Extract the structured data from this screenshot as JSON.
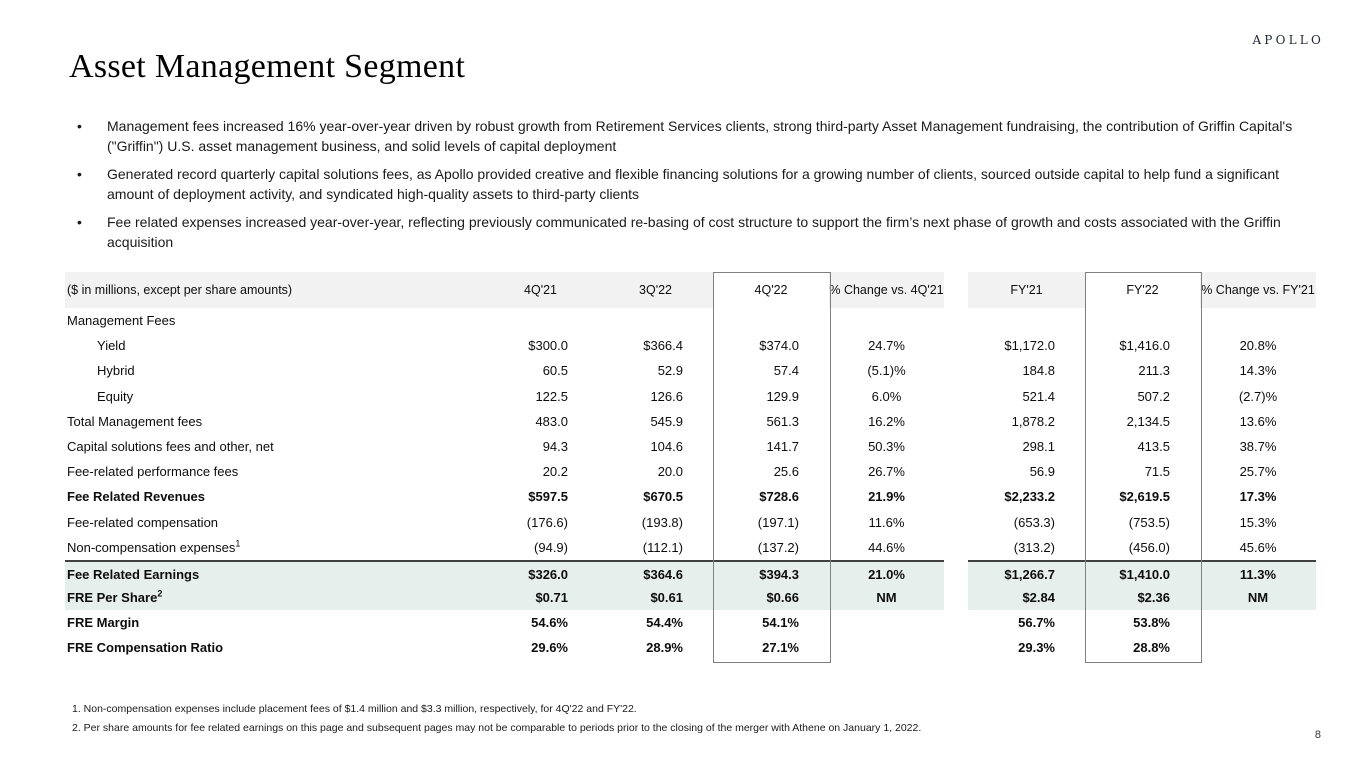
{
  "slide": {
    "logo": "APOLLO",
    "title": "Asset Management Segment",
    "page_number": "8"
  },
  "colors": {
    "highlight_row": "#e6efeb",
    "header_bar": "#f2f2f3",
    "column_outline": "#7f7f7f"
  },
  "bullets": [
    "Management fees increased 16% year-over-year driven by robust growth from Retirement Services clients, strong third-party Asset Management fundraising, the contribution of Griffin Capital's (\"Griffin\") U.S. asset management business, and solid levels of capital deployment",
    "Generated record quarterly capital solutions fees, as Apollo provided creative and flexible financing solutions for a growing number of clients, sourced outside capital to help fund a significant amount of deployment activity, and syndicated high-quality assets to third-party clients",
    "Fee related expenses increased year-over-year, reflecting previously communicated re-basing of cost structure to support the firm’s next phase of growth and costs associated with the Griffin acquisition"
  ],
  "table": {
    "units_label": "($ in millions, except per share amounts)",
    "columns": [
      "4Q'21",
      "3Q'22",
      "4Q'22",
      "% Change vs. 4Q'21",
      "FY'21",
      "FY'22",
      "% Change vs. FY'21"
    ],
    "rows": [
      {
        "label": "Management Fees",
        "values": [
          "",
          "",
          "",
          "",
          "",
          "",
          ""
        ]
      },
      {
        "label": "Yield",
        "indent": true,
        "values": [
          "$300.0",
          "$366.4",
          "$374.0",
          "24.7%",
          "$1,172.0",
          "$1,416.0",
          "20.8%"
        ]
      },
      {
        "label": "Hybrid",
        "indent": true,
        "values": [
          "60.5",
          "52.9",
          "57.4",
          "(5.1)%",
          "184.8",
          "211.3",
          "14.3%"
        ]
      },
      {
        "label": "Equity",
        "indent": true,
        "values": [
          "122.5",
          "126.6",
          "129.9",
          "6.0%",
          "521.4",
          "507.2",
          "(2.7)%"
        ]
      },
      {
        "label": "Total Management fees",
        "values": [
          "483.0",
          "545.9",
          "561.3",
          "16.2%",
          "1,878.2",
          "2,134.5",
          "13.6%"
        ]
      },
      {
        "label": "Capital solutions fees and other, net",
        "values": [
          "94.3",
          "104.6",
          "141.7",
          "50.3%",
          "298.1",
          "413.5",
          "38.7%"
        ]
      },
      {
        "label": "Fee-related performance fees",
        "values": [
          "20.2",
          "20.0",
          "25.6",
          "26.7%",
          "56.9",
          "71.5",
          "25.7%"
        ]
      },
      {
        "label": "Fee Related Revenues",
        "bold": true,
        "values": [
          "$597.5",
          "$670.5",
          "$728.6",
          "21.9%",
          "$2,233.2",
          "$2,619.5",
          "17.3%"
        ]
      },
      {
        "label": "Fee-related compensation",
        "values": [
          "(176.6)",
          "(193.8)",
          "(197.1)",
          "11.6%",
          "(653.3)",
          "(753.5)",
          "15.3%"
        ]
      },
      {
        "label": "Non-compensation expenses",
        "sup": "1",
        "values": [
          "(94.9)",
          "(112.1)",
          "(137.2)",
          "44.6%",
          "(313.2)",
          "(456.0)",
          "45.6%"
        ]
      },
      {
        "label": "Fee Related Earnings",
        "bold": true,
        "highlight": true,
        "topBorder": true,
        "values": [
          "$326.0",
          "$364.6",
          "$394.3",
          "21.0%",
          "$1,266.7",
          "$1,410.0",
          "11.3%"
        ]
      },
      {
        "label": "FRE Per Share",
        "sup": "2",
        "bold": true,
        "highlight": true,
        "values": [
          "$0.71",
          "$0.61",
          "$0.66",
          "NM",
          "$2.84",
          "$2.36",
          "NM"
        ]
      },
      {
        "label": "FRE Margin",
        "bold": true,
        "values": [
          "54.6%",
          "54.4%",
          "54.1%",
          "",
          "56.7%",
          "53.8%",
          ""
        ]
      },
      {
        "label": "FRE Compensation Ratio",
        "bold": true,
        "values": [
          "29.6%",
          "28.9%",
          "27.1%",
          "",
          "29.3%",
          "28.8%",
          ""
        ]
      }
    ]
  },
  "footnotes": [
    "1. Non-compensation expenses include placement fees of $1.4 million and $3.3 million, respectively, for 4Q'22 and FY'22.",
    "2. Per share amounts for fee related earnings on this page and subsequent pages may not be comparable to periods prior to the closing of the merger with Athene on January 1, 2022."
  ]
}
